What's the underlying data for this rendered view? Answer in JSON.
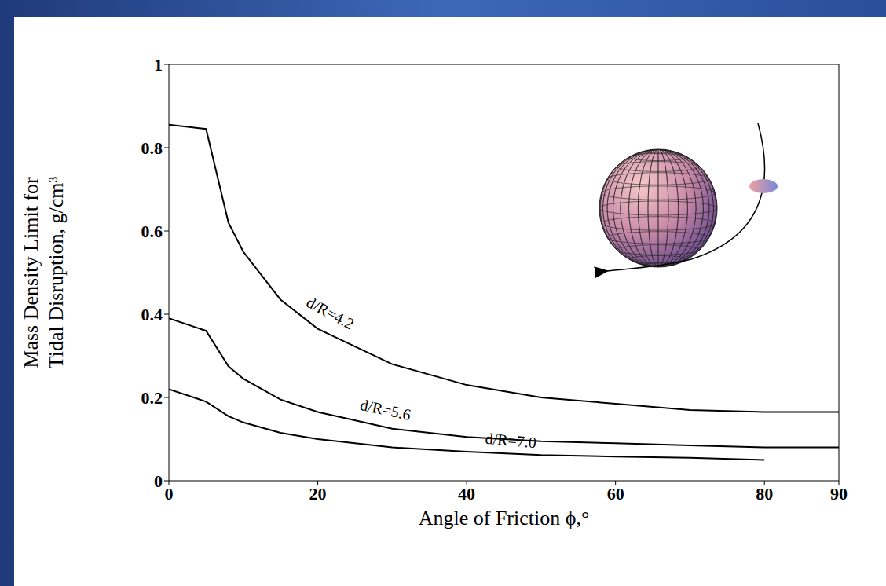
{
  "chart_data": {
    "type": "line",
    "xlabel": "Angle of Friction ϕ,°",
    "ylabel": "Mass Density Limit for Tidal Disruption, g/cm³",
    "x": [
      0,
      5,
      8,
      10,
      15,
      20,
      30,
      40,
      50,
      60,
      70,
      80,
      90
    ],
    "series": [
      {
        "name": "d/R=4.2",
        "color": "#000000",
        "values": [
          0.855,
          0.845,
          0.62,
          0.55,
          0.435,
          0.365,
          0.28,
          0.23,
          0.2,
          0.185,
          0.17,
          0.165,
          0.165
        ]
      },
      {
        "name": "d/R=5.6",
        "color": "#000000",
        "values": [
          0.39,
          0.36,
          0.275,
          0.245,
          0.195,
          0.165,
          0.125,
          0.105,
          0.095,
          0.09,
          0.085,
          0.08,
          0.08
        ]
      },
      {
        "name": "d/R=7.0",
        "color": "#000000",
        "values": [
          0.22,
          0.19,
          0.155,
          0.14,
          0.115,
          0.1,
          0.08,
          0.07,
          0.062,
          0.058,
          0.055,
          0.05,
          null
        ]
      }
    ],
    "xlim": [
      0,
      90
    ],
    "xticks": [
      0,
      20,
      40,
      60,
      80,
      90
    ],
    "ylim": [
      0,
      1
    ],
    "yticks": [
      0,
      0.2,
      0.4,
      0.6,
      0.8,
      1
    ],
    "grid": false
  }
}
